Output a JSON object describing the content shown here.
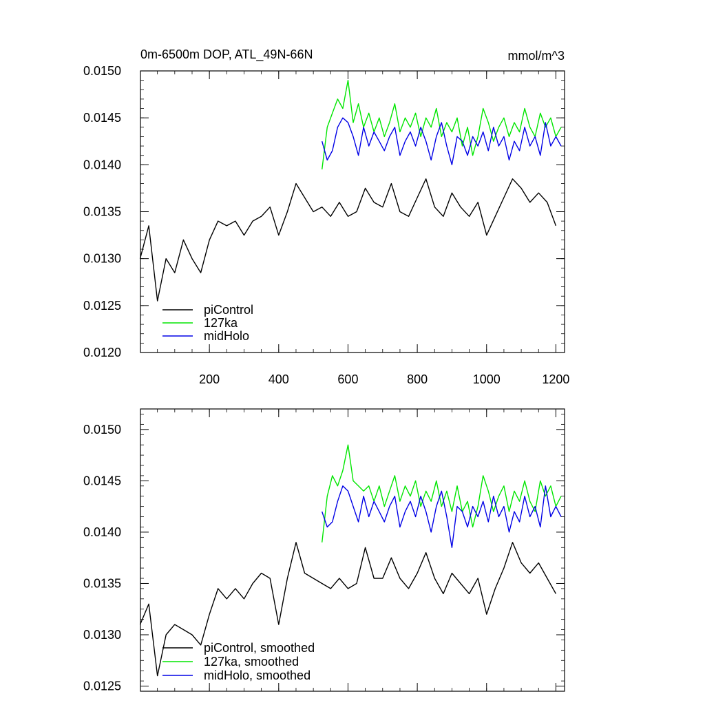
{
  "colors": {
    "piControl": "#000000",
    "127ka": "#00e600",
    "midHolo": "#0000e6",
    "axis": "#000000"
  },
  "chart_data": [
    {
      "type": "line",
      "title": "0m-6500m DOP, ATL_49N-66N",
      "units_label": "mmol/m^3",
      "xlabel": "",
      "ylabel": "",
      "xlim": [
        1,
        1225
      ],
      "ylim": [
        0.012,
        0.015
      ],
      "x_ticks": [
        200,
        400,
        600,
        800,
        1000,
        1200
      ],
      "x_tick_labels": [
        "200",
        "400",
        "600",
        "800",
        "1000",
        "1200"
      ],
      "y_ticks": [
        0.012,
        0.0125,
        0.013,
        0.0135,
        0.014,
        0.0145,
        0.015
      ],
      "y_tick_labels": [
        "0.0120",
        "0.0125",
        "0.0130",
        "0.0135",
        "0.0140",
        "0.0145",
        "0.0150"
      ],
      "legend_position": "bottom-left",
      "series": [
        {
          "name": "piControl",
          "color": "#000000",
          "x": [
            0,
            25,
            50,
            75,
            100,
            125,
            150,
            175,
            200,
            225,
            250,
            275,
            300,
            325,
            350,
            375,
            400,
            425,
            450,
            475,
            500,
            525,
            550,
            575,
            600,
            625,
            650,
            675,
            700,
            725,
            750,
            775,
            800,
            825,
            850,
            875,
            900,
            925,
            950,
            975,
            1000,
            1025,
            1050,
            1075,
            1100,
            1125,
            1150,
            1175,
            1200
          ],
          "values": [
            0.013,
            0.01335,
            0.01255,
            0.013,
            0.01285,
            0.0132,
            0.013,
            0.01285,
            0.0132,
            0.0134,
            0.01335,
            0.0134,
            0.01325,
            0.0134,
            0.01345,
            0.01355,
            0.01325,
            0.0135,
            0.0138,
            0.01365,
            0.0135,
            0.01355,
            0.01345,
            0.0136,
            0.01345,
            0.0135,
            0.01375,
            0.0136,
            0.01355,
            0.0138,
            0.0135,
            0.01345,
            0.01365,
            0.01385,
            0.01355,
            0.01345,
            0.0137,
            0.01355,
            0.01345,
            0.0136,
            0.01325,
            0.01345,
            0.01365,
            0.01385,
            0.01375,
            0.0136,
            0.0137,
            0.0136,
            0.01335
          ]
        },
        {
          "name": "127ka",
          "color": "#00e600",
          "x": [
            525,
            540,
            555,
            570,
            585,
            600,
            615,
            630,
            645,
            660,
            675,
            690,
            705,
            720,
            735,
            750,
            765,
            780,
            795,
            810,
            825,
            840,
            855,
            870,
            885,
            900,
            915,
            930,
            945,
            960,
            975,
            990,
            1005,
            1020,
            1035,
            1050,
            1065,
            1080,
            1095,
            1110,
            1125,
            1140,
            1155,
            1170,
            1185,
            1200,
            1215
          ],
          "values": [
            0.01395,
            0.0144,
            0.01455,
            0.0147,
            0.0146,
            0.0149,
            0.01445,
            0.01465,
            0.0144,
            0.01455,
            0.01435,
            0.0145,
            0.0143,
            0.01445,
            0.01465,
            0.01435,
            0.0145,
            0.0144,
            0.01455,
            0.0143,
            0.0145,
            0.0144,
            0.0146,
            0.0143,
            0.01445,
            0.01435,
            0.0145,
            0.0142,
            0.0144,
            0.0141,
            0.0143,
            0.0146,
            0.01445,
            0.01425,
            0.0144,
            0.0145,
            0.0143,
            0.01445,
            0.01435,
            0.0146,
            0.0144,
            0.0143,
            0.01455,
            0.0144,
            0.0145,
            0.0143,
            0.0144
          ]
        },
        {
          "name": "midHolo",
          "color": "#0000e6",
          "x": [
            525,
            540,
            555,
            570,
            585,
            600,
            615,
            630,
            645,
            660,
            675,
            690,
            705,
            720,
            735,
            750,
            765,
            780,
            795,
            810,
            825,
            840,
            855,
            870,
            885,
            900,
            915,
            930,
            945,
            960,
            975,
            990,
            1005,
            1020,
            1035,
            1050,
            1065,
            1080,
            1095,
            1110,
            1125,
            1140,
            1155,
            1170,
            1185,
            1200,
            1215
          ],
          "values": [
            0.01425,
            0.01405,
            0.01415,
            0.0144,
            0.0145,
            0.01445,
            0.0143,
            0.0141,
            0.0144,
            0.0142,
            0.01435,
            0.01425,
            0.01415,
            0.0143,
            0.0144,
            0.0141,
            0.01425,
            0.01435,
            0.0142,
            0.0144,
            0.01425,
            0.01405,
            0.0143,
            0.01445,
            0.0142,
            0.014,
            0.0143,
            0.01425,
            0.0141,
            0.0143,
            0.0142,
            0.01435,
            0.01415,
            0.0144,
            0.0142,
            0.0143,
            0.01405,
            0.01425,
            0.01415,
            0.0144,
            0.0142,
            0.0143,
            0.0141,
            0.01445,
            0.0142,
            0.0143,
            0.0142
          ]
        }
      ],
      "legend": [
        {
          "label": "piControl",
          "color": "#000000"
        },
        {
          "label": "127ka",
          "color": "#00e600"
        },
        {
          "label": "midHolo",
          "color": "#0000e6"
        }
      ]
    },
    {
      "type": "line",
      "title": "",
      "xlabel": "",
      "ylabel": "",
      "xlim": [
        1,
        1225
      ],
      "ylim": [
        0.01245,
        0.0152
      ],
      "x_ticks": [
        200,
        400,
        600,
        800,
        1000,
        1200
      ],
      "x_tick_labels": [],
      "y_ticks": [
        0.0125,
        0.013,
        0.0135,
        0.014,
        0.0145,
        0.015
      ],
      "y_tick_labels": [
        "0.0125",
        "0.0130",
        "0.0135",
        "0.0140",
        "0.0145",
        "0.0150"
      ],
      "legend_position": "bottom-left",
      "series": [
        {
          "name": "piControl, smoothed",
          "color": "#000000",
          "x": [
            0,
            25,
            50,
            75,
            100,
            125,
            150,
            175,
            200,
            225,
            250,
            275,
            300,
            325,
            350,
            375,
            400,
            425,
            450,
            475,
            500,
            525,
            550,
            575,
            600,
            625,
            650,
            675,
            700,
            725,
            750,
            775,
            800,
            825,
            850,
            875,
            900,
            925,
            950,
            975,
            1000,
            1025,
            1050,
            1075,
            1100,
            1125,
            1150,
            1175,
            1200
          ],
          "values": [
            0.0131,
            0.0133,
            0.0126,
            0.013,
            0.0131,
            0.01305,
            0.013,
            0.0129,
            0.0132,
            0.01345,
            0.01335,
            0.01345,
            0.01335,
            0.0135,
            0.0136,
            0.01355,
            0.0131,
            0.01355,
            0.0139,
            0.0136,
            0.01355,
            0.0135,
            0.01345,
            0.01355,
            0.01345,
            0.0135,
            0.01385,
            0.01355,
            0.01355,
            0.01375,
            0.01355,
            0.01345,
            0.0136,
            0.0138,
            0.01355,
            0.0134,
            0.0136,
            0.0135,
            0.0134,
            0.01355,
            0.0132,
            0.01345,
            0.01365,
            0.0139,
            0.0137,
            0.0136,
            0.0137,
            0.01355,
            0.0134
          ]
        },
        {
          "name": "127ka, smoothed",
          "color": "#00e600",
          "x": [
            525,
            540,
            555,
            570,
            585,
            600,
            615,
            630,
            645,
            660,
            675,
            690,
            705,
            720,
            735,
            750,
            765,
            780,
            795,
            810,
            825,
            840,
            855,
            870,
            885,
            900,
            915,
            930,
            945,
            960,
            975,
            990,
            1005,
            1020,
            1035,
            1050,
            1065,
            1080,
            1095,
            1110,
            1125,
            1140,
            1155,
            1170,
            1185,
            1200,
            1215
          ],
          "values": [
            0.0139,
            0.01435,
            0.01455,
            0.01445,
            0.0146,
            0.01485,
            0.0145,
            0.01445,
            0.0144,
            0.01445,
            0.0143,
            0.01445,
            0.01425,
            0.0144,
            0.01455,
            0.0143,
            0.01445,
            0.01435,
            0.0145,
            0.01425,
            0.0144,
            0.0143,
            0.0145,
            0.01425,
            0.0144,
            0.0142,
            0.01445,
            0.0142,
            0.0143,
            0.01405,
            0.01425,
            0.01455,
            0.0144,
            0.0142,
            0.01435,
            0.01445,
            0.0142,
            0.0144,
            0.0143,
            0.0145,
            0.0143,
            0.0142,
            0.0145,
            0.01435,
            0.01445,
            0.01425,
            0.01435
          ]
        },
        {
          "name": "midHolo, smoothed",
          "color": "#0000e6",
          "x": [
            525,
            540,
            555,
            570,
            585,
            600,
            615,
            630,
            645,
            660,
            675,
            690,
            705,
            720,
            735,
            750,
            765,
            780,
            795,
            810,
            825,
            840,
            855,
            870,
            885,
            900,
            915,
            930,
            945,
            960,
            975,
            990,
            1005,
            1020,
            1035,
            1050,
            1065,
            1080,
            1095,
            1110,
            1125,
            1140,
            1155,
            1170,
            1185,
            1200,
            1215
          ],
          "values": [
            0.0142,
            0.01405,
            0.0141,
            0.0143,
            0.01445,
            0.0144,
            0.01425,
            0.0141,
            0.01435,
            0.01415,
            0.0143,
            0.0142,
            0.0141,
            0.01425,
            0.01435,
            0.01405,
            0.0142,
            0.0143,
            0.01415,
            0.01435,
            0.0142,
            0.014,
            0.01425,
            0.0144,
            0.01415,
            0.01385,
            0.01425,
            0.0142,
            0.01405,
            0.01425,
            0.01415,
            0.0143,
            0.0141,
            0.01435,
            0.01415,
            0.01425,
            0.014,
            0.0142,
            0.0141,
            0.01435,
            0.01415,
            0.01425,
            0.01405,
            0.01445,
            0.01415,
            0.01425,
            0.01415
          ]
        }
      ],
      "legend": [
        {
          "label": "piControl, smoothed",
          "color": "#000000"
        },
        {
          "label": "127ka, smoothed",
          "color": "#00e600"
        },
        {
          "label": "midHolo, smoothed",
          "color": "#0000e6"
        }
      ]
    }
  ]
}
